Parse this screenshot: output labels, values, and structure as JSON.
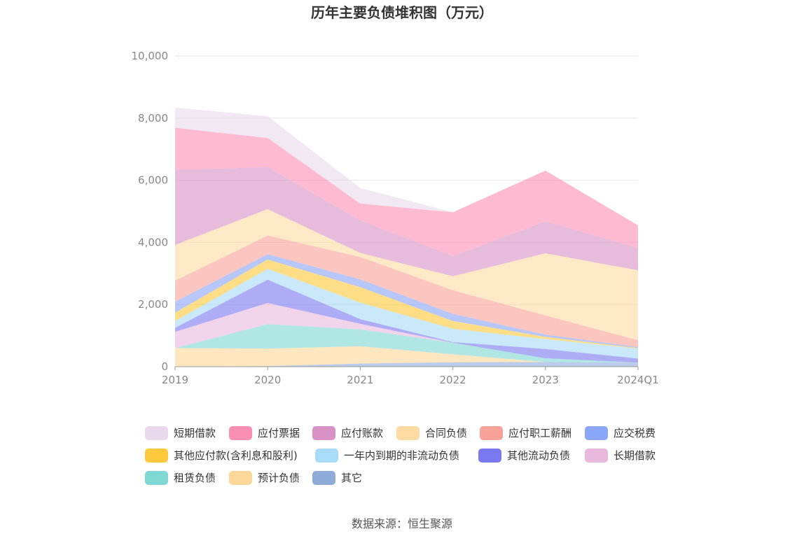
{
  "chart_data": {
    "type": "area",
    "stacked": true,
    "title": "历年主要负债堆积图（万元）",
    "categories": [
      "2019",
      "2020",
      "2021",
      "2022",
      "2023",
      "2024Q1"
    ],
    "ylim": [
      0,
      10000
    ],
    "yticks": [
      "0",
      "2,000",
      "4,000",
      "6,000",
      "8,000",
      "10,000"
    ],
    "grid": true,
    "legend_position": "bottom",
    "series": [
      {
        "name": "其它",
        "color": "#8facd8",
        "values": [
          0,
          20,
          100,
          140,
          150,
          130
        ]
      },
      {
        "name": "预计负债",
        "color": "#fdd79a",
        "values": [
          600,
          560,
          560,
          260,
          0,
          0
        ]
      },
      {
        "name": "租赁负债",
        "color": "#7fd8d3",
        "values": [
          0,
          790,
          540,
          370,
          120,
          0
        ]
      },
      {
        "name": "长期借款",
        "color": "#e8b9dc",
        "values": [
          520,
          680,
          180,
          0,
          0,
          0
        ]
      },
      {
        "name": "其他流动负债",
        "color": "#7a79ef",
        "values": [
          130,
          750,
          150,
          20,
          300,
          130
        ]
      },
      {
        "name": "一年内到期的非流动负债",
        "color": "#a8dcf8",
        "values": [
          220,
          350,
          530,
          430,
          320,
          320
        ]
      },
      {
        "name": "其他应付款(含利息和股利)",
        "color": "#fcc93d",
        "values": [
          270,
          300,
          500,
          250,
          70,
          20
        ]
      },
      {
        "name": "应交税费",
        "color": "#8ba5f7",
        "values": [
          350,
          170,
          250,
          230,
          70,
          30
        ]
      },
      {
        "name": "应付职工薪酬",
        "color": "#f8a299",
        "values": [
          680,
          600,
          720,
          760,
          620,
          220
        ]
      },
      {
        "name": "合同负债",
        "color": "#fddba3",
        "values": [
          1150,
          850,
          130,
          450,
          2000,
          2250
        ]
      },
      {
        "name": "应付账款",
        "color": "#d992c6",
        "values": [
          2420,
          1350,
          1050,
          650,
          1030,
          720
        ]
      },
      {
        "name": "应付票据",
        "color": "#fb8fb3",
        "values": [
          1350,
          940,
          540,
          1410,
          1630,
          730
        ]
      },
      {
        "name": "短期借款",
        "color": "#e8daec",
        "values": [
          650,
          700,
          500,
          0,
          0,
          0
        ]
      }
    ],
    "legend_order": [
      "短期借款",
      "应付票据",
      "应付账款",
      "合同负债",
      "应付职工薪酬",
      "应交税费",
      "其他应付款(含利息和股利)",
      "一年内到期的非流动负债",
      "其他流动负债",
      "长期借款",
      "租赁负债",
      "预计负债",
      "其它"
    ]
  },
  "footer": {
    "source": "数据来源：恒生聚源"
  }
}
